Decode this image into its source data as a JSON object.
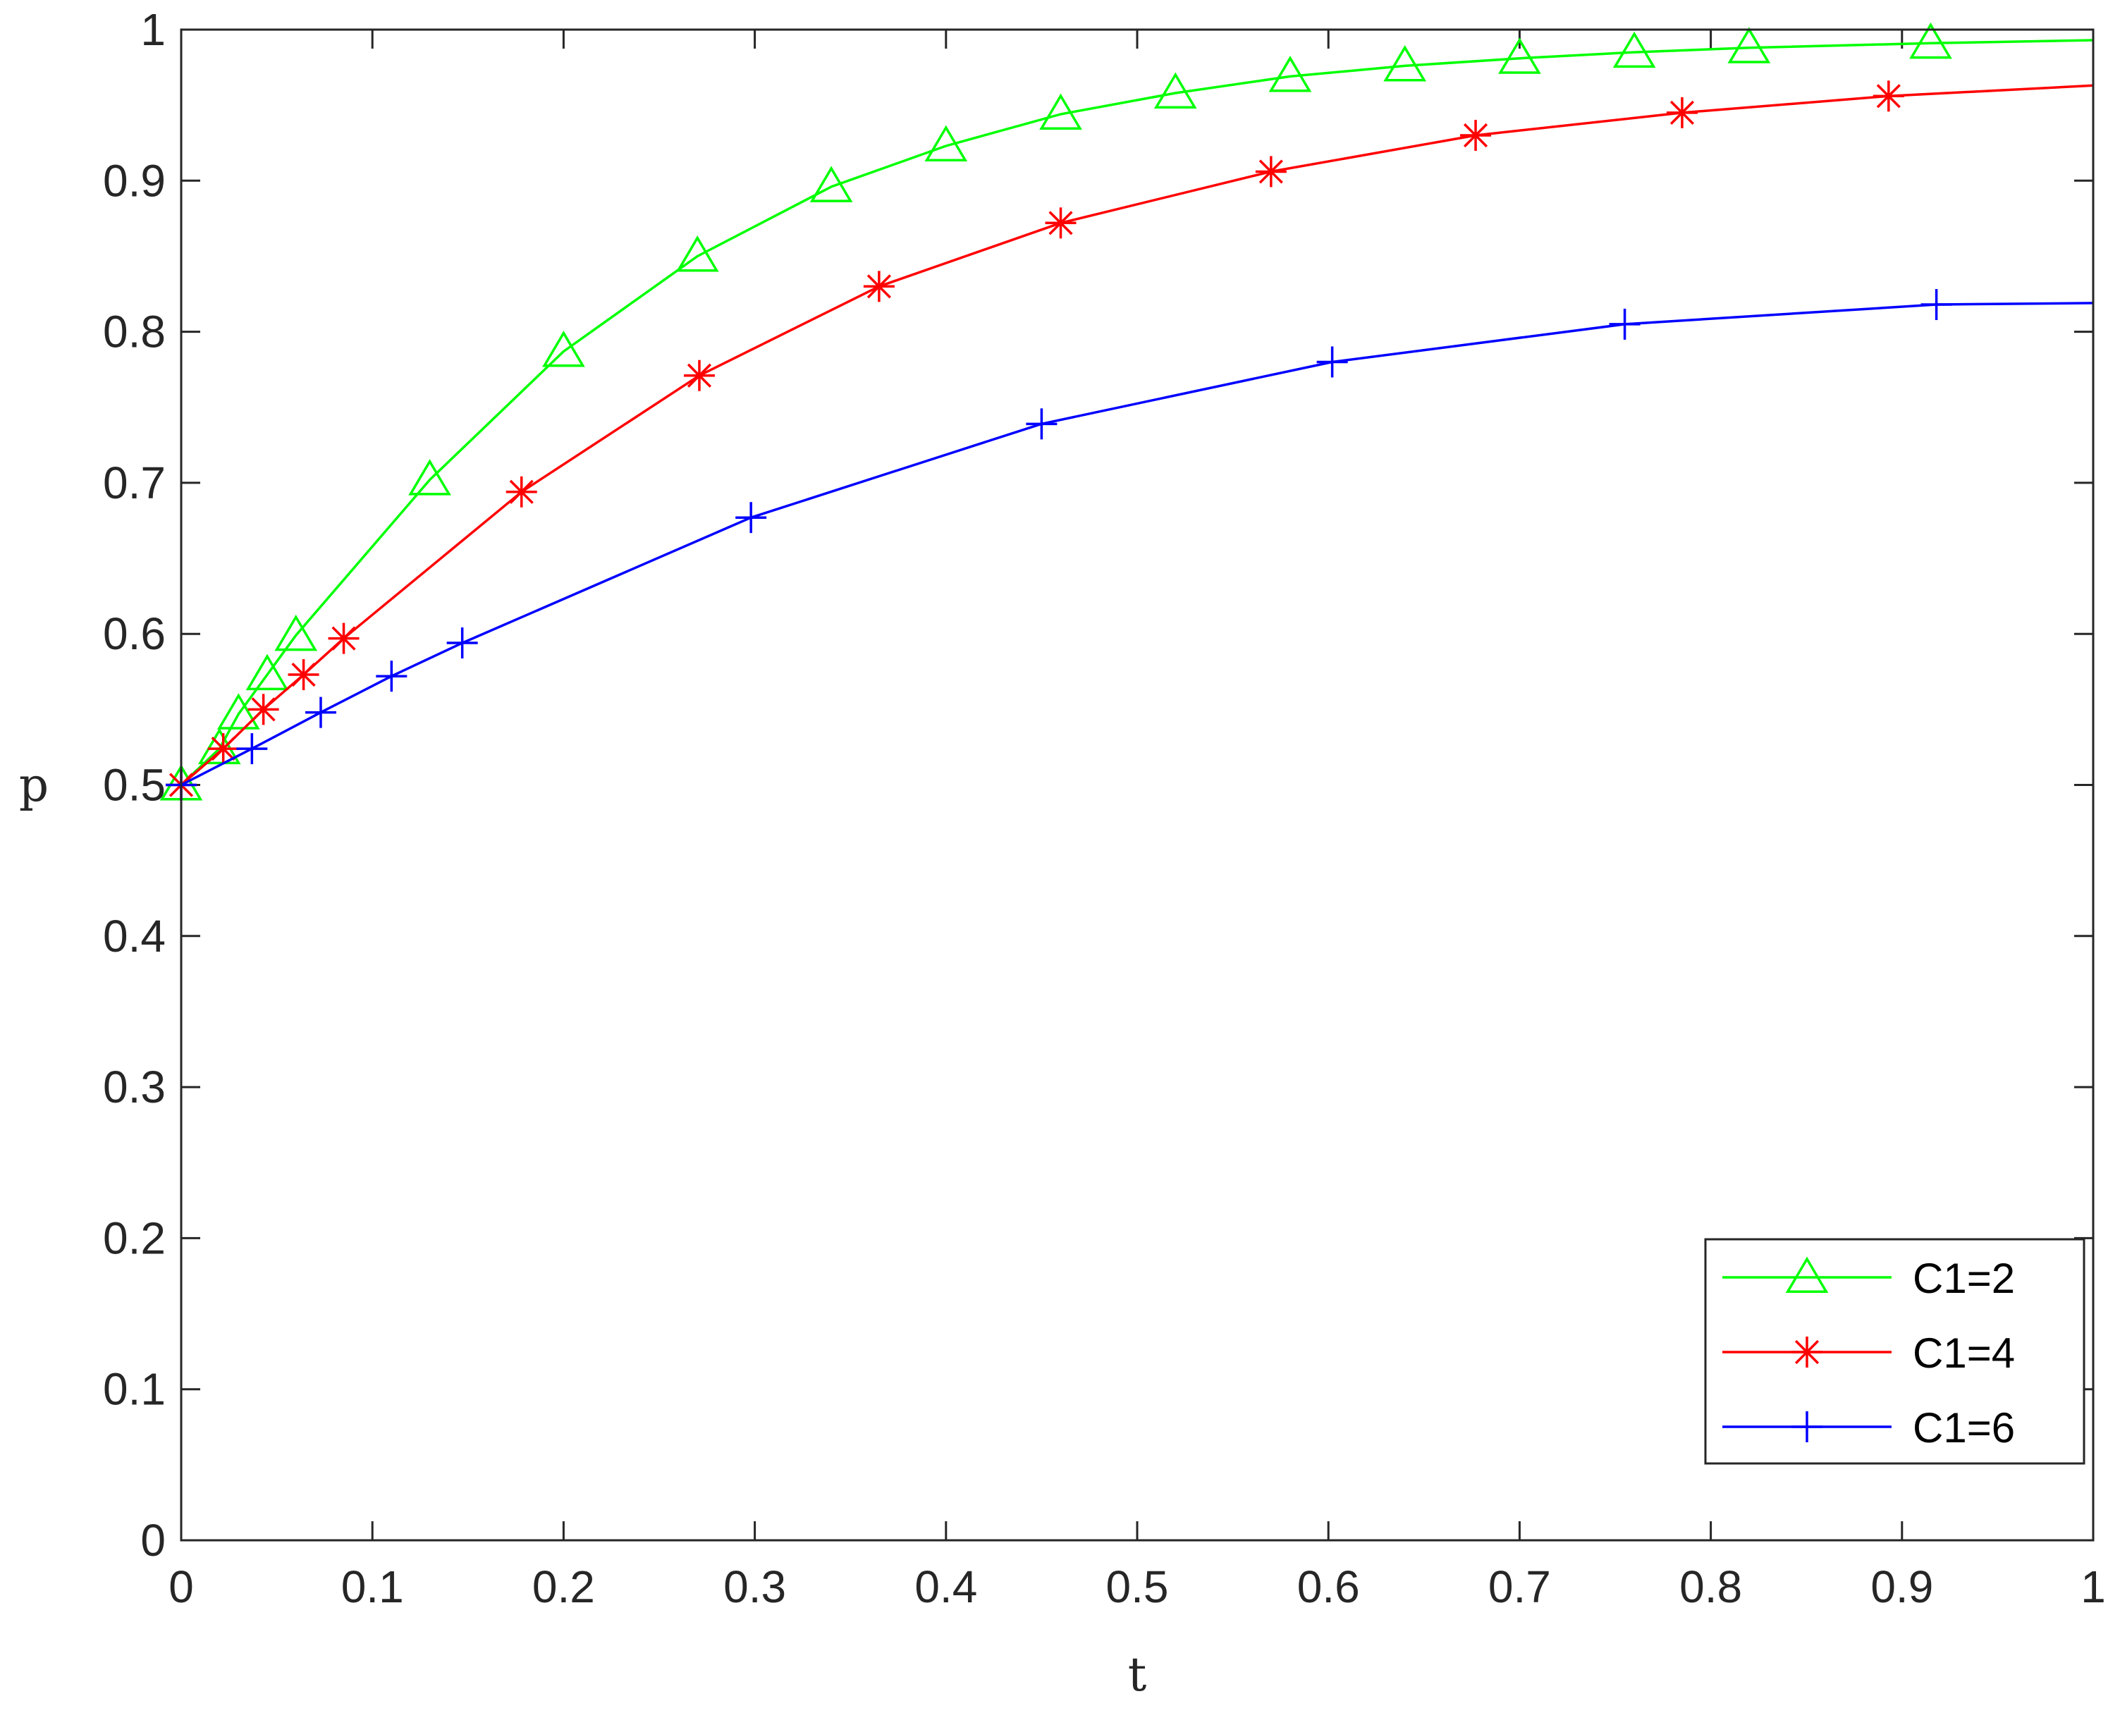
{
  "chart_data": {
    "type": "line",
    "xlabel": "t",
    "ylabel": "p",
    "xlim": [
      0,
      1
    ],
    "ylim": [
      0,
      1
    ],
    "x_ticks": [
      "0",
      "0.1",
      "0.2",
      "0.3",
      "0.4",
      "0.5",
      "0.6",
      "0.7",
      "0.8",
      "0.9",
      "1"
    ],
    "y_ticks": [
      "0",
      "0.1",
      "0.2",
      "0.3",
      "0.4",
      "0.5",
      "0.6",
      "0.7",
      "0.8",
      "0.9",
      "1"
    ],
    "grid": false,
    "box": true,
    "legend_position": "bottom-right",
    "series": [
      {
        "name": "C1=2",
        "color": "#00ff00",
        "marker": "triangle",
        "points": [
          [
            0.0,
            0.5
          ],
          [
            0.01,
            0.512
          ],
          [
            0.02,
            0.524
          ],
          [
            0.03,
            0.547
          ],
          [
            0.045,
            0.573
          ],
          [
            0.06,
            0.599
          ],
          [
            0.13,
            0.702
          ],
          [
            0.2,
            0.787
          ],
          [
            0.27,
            0.85
          ],
          [
            0.34,
            0.896
          ],
          [
            0.4,
            0.923
          ],
          [
            0.46,
            0.944
          ],
          [
            0.52,
            0.958
          ],
          [
            0.58,
            0.969
          ],
          [
            0.64,
            0.976
          ],
          [
            0.7,
            0.981
          ],
          [
            0.76,
            0.985
          ],
          [
            0.82,
            0.988
          ],
          [
            0.915,
            0.991
          ],
          [
            1.0,
            0.993
          ]
        ],
        "marker_points": [
          [
            0.0,
            0.5
          ],
          [
            0.02,
            0.524
          ],
          [
            0.03,
            0.547
          ],
          [
            0.045,
            0.573
          ],
          [
            0.06,
            0.599
          ],
          [
            0.13,
            0.702
          ],
          [
            0.2,
            0.787
          ],
          [
            0.27,
            0.85
          ],
          [
            0.34,
            0.896
          ],
          [
            0.4,
            0.923
          ],
          [
            0.46,
            0.944
          ],
          [
            0.52,
            0.958
          ],
          [
            0.58,
            0.969
          ],
          [
            0.64,
            0.976
          ],
          [
            0.7,
            0.981
          ],
          [
            0.76,
            0.985
          ],
          [
            0.82,
            0.988
          ],
          [
            0.915,
            0.991
          ]
        ]
      },
      {
        "name": "C1=4",
        "color": "#ff0000",
        "marker": "asterisk",
        "points": [
          [
            0.0,
            0.5
          ],
          [
            0.022,
            0.524
          ],
          [
            0.043,
            0.55
          ],
          [
            0.064,
            0.573
          ],
          [
            0.085,
            0.597
          ],
          [
            0.178,
            0.694
          ],
          [
            0.271,
            0.771
          ],
          [
            0.365,
            0.83
          ],
          [
            0.46,
            0.872
          ],
          [
            0.57,
            0.906
          ],
          [
            0.677,
            0.93
          ],
          [
            0.785,
            0.945
          ],
          [
            0.893,
            0.956
          ],
          [
            1.0,
            0.963
          ]
        ],
        "marker_points": [
          [
            0.0,
            0.5
          ],
          [
            0.022,
            0.524
          ],
          [
            0.043,
            0.55
          ],
          [
            0.064,
            0.573
          ],
          [
            0.085,
            0.597
          ],
          [
            0.178,
            0.694
          ],
          [
            0.271,
            0.771
          ],
          [
            0.365,
            0.83
          ],
          [
            0.46,
            0.872
          ],
          [
            0.57,
            0.906
          ],
          [
            0.677,
            0.93
          ],
          [
            0.785,
            0.945
          ],
          [
            0.893,
            0.956
          ]
        ]
      },
      {
        "name": "C1=6",
        "color": "#0000ff",
        "marker": "plus",
        "points": [
          [
            0.0,
            0.5
          ],
          [
            0.037,
            0.524
          ],
          [
            0.073,
            0.548
          ],
          [
            0.11,
            0.572
          ],
          [
            0.147,
            0.594
          ],
          [
            0.298,
            0.677
          ],
          [
            0.45,
            0.739
          ],
          [
            0.602,
            0.78
          ],
          [
            0.755,
            0.805
          ],
          [
            0.918,
            0.818
          ],
          [
            1.0,
            0.819
          ]
        ],
        "marker_points": [
          [
            0.0,
            0.5
          ],
          [
            0.037,
            0.524
          ],
          [
            0.073,
            0.548
          ],
          [
            0.11,
            0.572
          ],
          [
            0.147,
            0.594
          ],
          [
            0.298,
            0.677
          ],
          [
            0.45,
            0.739
          ],
          [
            0.602,
            0.78
          ],
          [
            0.755,
            0.805
          ],
          [
            0.918,
            0.818
          ]
        ]
      }
    ]
  }
}
